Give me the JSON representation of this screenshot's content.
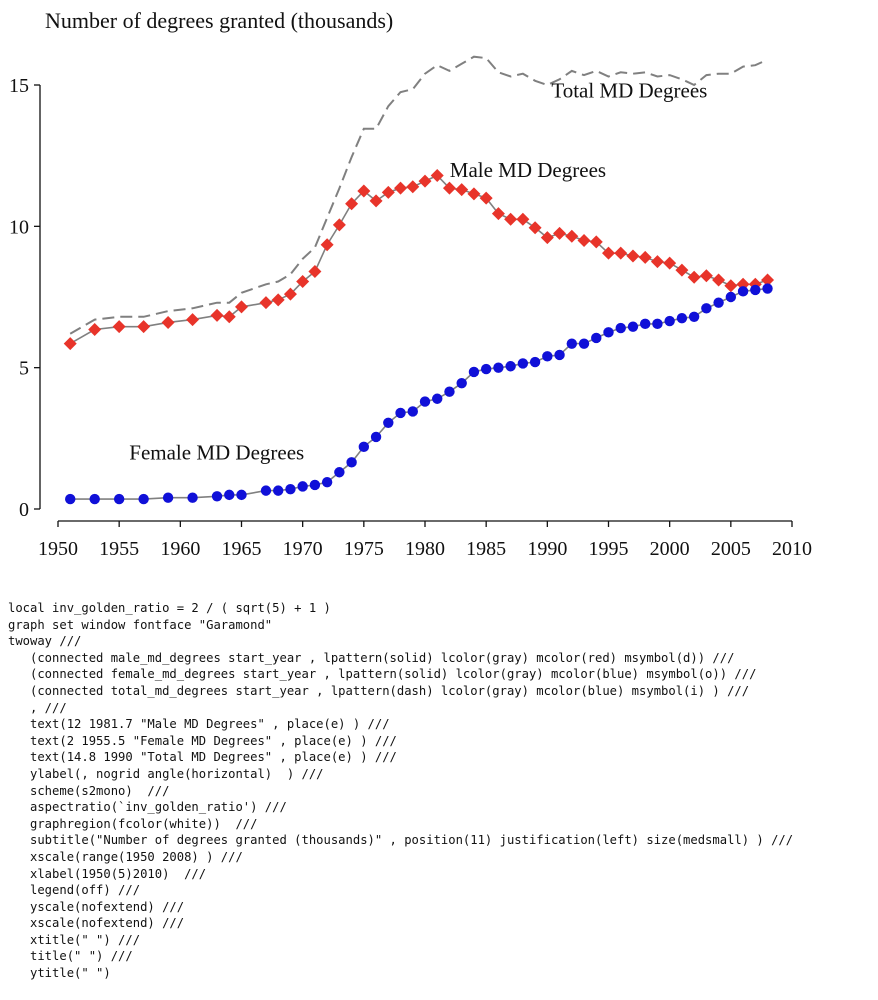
{
  "chart_data": {
    "type": "line",
    "subtitle": "Number of degrees granted (thousands)",
    "title": "",
    "xlabel": "",
    "ylabel": "",
    "xlim": [
      1950,
      2010
    ],
    "ylim": [
      0,
      16
    ],
    "x_ticks": [
      1950,
      1955,
      1960,
      1965,
      1970,
      1975,
      1980,
      1985,
      1990,
      1995,
      2000,
      2005,
      2010
    ],
    "y_ticks": [
      0,
      5,
      10,
      15
    ],
    "grid": false,
    "legend": "off",
    "series": [
      {
        "name": "Male MD Degrees",
        "color": "#e8342a",
        "line_color": "#808080",
        "line_style": "solid",
        "marker": "diamond",
        "label_at": [
          1981.7,
          12
        ],
        "points": [
          [
            1951,
            5.85
          ],
          [
            1953,
            6.35
          ],
          [
            1955,
            6.45
          ],
          [
            1957,
            6.45
          ],
          [
            1959,
            6.6
          ],
          [
            1961,
            6.7
          ],
          [
            1963,
            6.85
          ],
          [
            1964,
            6.8
          ],
          [
            1965,
            7.15
          ],
          [
            1967,
            7.3
          ],
          [
            1968,
            7.4
          ],
          [
            1969,
            7.6
          ],
          [
            1970,
            8.05
          ],
          [
            1971,
            8.4
          ],
          [
            1972,
            9.35
          ],
          [
            1973,
            10.05
          ],
          [
            1974,
            10.8
          ],
          [
            1975,
            11.25
          ],
          [
            1976,
            10.9
          ],
          [
            1977,
            11.2
          ],
          [
            1978,
            11.35
          ],
          [
            1979,
            11.4
          ],
          [
            1980,
            11.6
          ],
          [
            1981,
            11.8
          ],
          [
            1982,
            11.35
          ],
          [
            1983,
            11.3
          ],
          [
            1984,
            11.15
          ],
          [
            1985,
            11.0
          ],
          [
            1986,
            10.45
          ],
          [
            1987,
            10.25
          ],
          [
            1988,
            10.25
          ],
          [
            1989,
            9.95
          ],
          [
            1990,
            9.6
          ],
          [
            1991,
            9.75
          ],
          [
            1992,
            9.65
          ],
          [
            1993,
            9.5
          ],
          [
            1994,
            9.45
          ],
          [
            1995,
            9.05
          ],
          [
            1996,
            9.05
          ],
          [
            1997,
            8.95
          ],
          [
            1998,
            8.9
          ],
          [
            1999,
            8.75
          ],
          [
            2000,
            8.7
          ],
          [
            2001,
            8.45
          ],
          [
            2002,
            8.2
          ],
          [
            2003,
            8.25
          ],
          [
            2004,
            8.1
          ],
          [
            2005,
            7.9
          ],
          [
            2006,
            7.95
          ],
          [
            2007,
            7.95
          ],
          [
            2008,
            8.1
          ]
        ]
      },
      {
        "name": "Female MD Degrees",
        "color": "#1010d8",
        "line_color": "#808080",
        "line_style": "solid",
        "marker": "circle",
        "label_at": [
          1955.5,
          2
        ],
        "points": [
          [
            1951,
            0.35
          ],
          [
            1953,
            0.35
          ],
          [
            1955,
            0.35
          ],
          [
            1957,
            0.35
          ],
          [
            1959,
            0.4
          ],
          [
            1961,
            0.4
          ],
          [
            1963,
            0.45
          ],
          [
            1964,
            0.5
          ],
          [
            1965,
            0.5
          ],
          [
            1967,
            0.65
          ],
          [
            1968,
            0.65
          ],
          [
            1969,
            0.7
          ],
          [
            1970,
            0.8
          ],
          [
            1971,
            0.85
          ],
          [
            1972,
            0.95
          ],
          [
            1973,
            1.3
          ],
          [
            1974,
            1.65
          ],
          [
            1975,
            2.2
          ],
          [
            1976,
            2.55
          ],
          [
            1977,
            3.05
          ],
          [
            1978,
            3.4
          ],
          [
            1979,
            3.45
          ],
          [
            1980,
            3.8
          ],
          [
            1981,
            3.9
          ],
          [
            1982,
            4.15
          ],
          [
            1983,
            4.45
          ],
          [
            1984,
            4.85
          ],
          [
            1985,
            4.95
          ],
          [
            1986,
            5.0
          ],
          [
            1987,
            5.05
          ],
          [
            1988,
            5.15
          ],
          [
            1989,
            5.2
          ],
          [
            1990,
            5.4
          ],
          [
            1991,
            5.45
          ],
          [
            1992,
            5.85
          ],
          [
            1993,
            5.85
          ],
          [
            1994,
            6.05
          ],
          [
            1995,
            6.25
          ],
          [
            1996,
            6.4
          ],
          [
            1997,
            6.45
          ],
          [
            1998,
            6.55
          ],
          [
            1999,
            6.55
          ],
          [
            2000,
            6.65
          ],
          [
            2001,
            6.75
          ],
          [
            2002,
            6.8
          ],
          [
            2003,
            7.1
          ],
          [
            2004,
            7.3
          ],
          [
            2005,
            7.5
          ],
          [
            2006,
            7.7
          ],
          [
            2007,
            7.75
          ],
          [
            2008,
            7.8
          ]
        ]
      },
      {
        "name": "Total MD Degrees",
        "color": "#808080",
        "line_color": "#808080",
        "line_style": "dash",
        "marker": "none",
        "label_at": [
          1990,
          14.8
        ],
        "points": [
          [
            1951,
            6.2
          ],
          [
            1953,
            6.7
          ],
          [
            1955,
            6.8
          ],
          [
            1957,
            6.8
          ],
          [
            1959,
            7.0
          ],
          [
            1961,
            7.1
          ],
          [
            1963,
            7.3
          ],
          [
            1964,
            7.3
          ],
          [
            1965,
            7.65
          ],
          [
            1967,
            7.95
          ],
          [
            1968,
            8.05
          ],
          [
            1969,
            8.3
          ],
          [
            1970,
            8.85
          ],
          [
            1971,
            9.25
          ],
          [
            1972,
            10.3
          ],
          [
            1973,
            11.35
          ],
          [
            1974,
            12.45
          ],
          [
            1975,
            13.45
          ],
          [
            1976,
            13.45
          ],
          [
            1977,
            14.25
          ],
          [
            1978,
            14.75
          ],
          [
            1979,
            14.85
          ],
          [
            1980,
            15.4
          ],
          [
            1981,
            15.7
          ],
          [
            1982,
            15.5
          ],
          [
            1983,
            15.75
          ],
          [
            1984,
            16.0
          ],
          [
            1985,
            15.95
          ],
          [
            1986,
            15.45
          ],
          [
            1987,
            15.3
          ],
          [
            1988,
            15.4
          ],
          [
            1989,
            15.15
          ],
          [
            1990,
            15.0
          ],
          [
            1991,
            15.2
          ],
          [
            1992,
            15.5
          ],
          [
            1993,
            15.35
          ],
          [
            1994,
            15.5
          ],
          [
            1995,
            15.3
          ],
          [
            1996,
            15.45
          ],
          [
            1997,
            15.4
          ],
          [
            1998,
            15.45
          ],
          [
            1999,
            15.3
          ],
          [
            2000,
            15.35
          ],
          [
            2001,
            15.2
          ],
          [
            2002,
            15.0
          ],
          [
            2003,
            15.35
          ],
          [
            2004,
            15.4
          ],
          [
            2005,
            15.4
          ],
          [
            2006,
            15.65
          ],
          [
            2007,
            15.7
          ],
          [
            2008,
            15.9
          ]
        ]
      }
    ]
  },
  "code": {
    "lines": [
      "local inv_golden_ratio = 2 / ( sqrt(5) + 1 )",
      "graph set window fontface \"Garamond\"",
      "twoway ///",
      "   (connected male_md_degrees start_year , lpattern(solid) lcolor(gray) mcolor(red) msymbol(d)) ///",
      "   (connected female_md_degrees start_year , lpattern(solid) lcolor(gray) mcolor(blue) msymbol(o)) ///",
      "   (connected total_md_degrees start_year , lpattern(dash) lcolor(gray) mcolor(blue) msymbol(i) ) ///",
      "   , ///",
      "   text(12 1981.7 \"Male MD Degrees\" , place(e) ) ///",
      "   text(2 1955.5 \"Female MD Degrees\" , place(e) ) ///",
      "   text(14.8 1990 \"Total MD Degrees\" , place(e) ) ///",
      "   ylabel(, nogrid angle(horizontal)  ) ///",
      "   scheme(s2mono)  ///",
      "   aspectratio(`inv_golden_ratio') ///",
      "   graphregion(fcolor(white))  ///",
      "   subtitle(\"Number of degrees granted (thousands)\" , position(11) justification(left) size(medsmall) ) ///",
      "   xscale(range(1950 2008) ) ///",
      "   xlabel(1950(5)2010)  ///",
      "   legend(off) ///",
      "   yscale(nofextend) ///",
      "   xscale(nofextend) ///",
      "   xtitle(\" \") ///",
      "   title(\" \") ///",
      "   ytitle(\" \")"
    ]
  }
}
